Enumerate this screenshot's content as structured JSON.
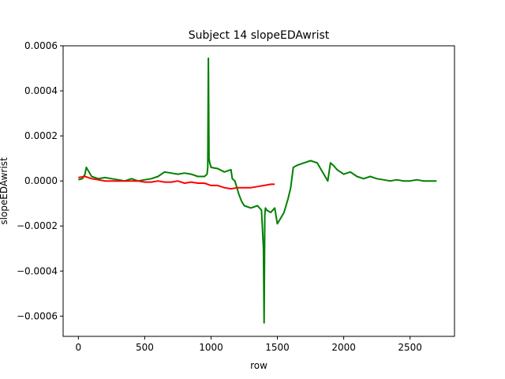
{
  "chart_data": {
    "type": "line",
    "title": "Subject 14 slopeEDAwrist",
    "xlabel": "row",
    "ylabel": "slopeEDAwrist",
    "xlim": [
      -115,
      2835
    ],
    "ylim": [
      -0.00069,
      0.0006
    ],
    "xticks": [
      0,
      500,
      1000,
      1500,
      2000,
      2500
    ],
    "xtick_labels": [
      "0",
      "500",
      "1000",
      "1500",
      "2000",
      "2500"
    ],
    "yticks": [
      -0.0006,
      -0.0004,
      -0.0002,
      0.0,
      0.0002,
      0.0004,
      0.0006
    ],
    "ytick_labels": [
      "−0.0006",
      "−0.0004",
      "−0.0002",
      "0.0000",
      "0.0002",
      "0.0004",
      "0.0006"
    ],
    "grid": false,
    "series": [
      {
        "color": "#008000",
        "x": [
          0,
          30,
          50,
          60,
          80,
          100,
          150,
          200,
          250,
          300,
          350,
          400,
          450,
          500,
          550,
          600,
          650,
          700,
          750,
          800,
          850,
          900,
          950,
          970,
          975,
          980,
          985,
          990,
          1000,
          1050,
          1100,
          1150,
          1160,
          1180,
          1200,
          1210,
          1230,
          1250,
          1300,
          1350,
          1380,
          1395,
          1400,
          1405,
          1410,
          1420,
          1450,
          1480,
          1500,
          1520,
          1550,
          1580,
          1600,
          1620,
          1650,
          1700,
          1750,
          1800,
          1830,
          1850,
          1880,
          1900,
          1920,
          1950,
          2000,
          2050,
          2100,
          2150,
          2200,
          2250,
          2300,
          2350,
          2400,
          2450,
          2500,
          2550,
          2600,
          2650,
          2700
        ],
        "y": [
          5e-06,
          1e-05,
          3e-05,
          6e-05,
          4e-05,
          2e-05,
          1e-05,
          1.5e-05,
          1e-05,
          5e-06,
          0.0,
          1e-05,
          0.0,
          5e-06,
          1e-05,
          2e-05,
          4e-05,
          3.5e-05,
          3e-05,
          3.5e-05,
          3e-05,
          2e-05,
          2e-05,
          3e-05,
          6e-05,
          0.000545,
          0.0001,
          8e-05,
          6e-05,
          5.5e-05,
          4e-05,
          5e-05,
          1e-05,
          0.0,
          -4e-05,
          -6e-05,
          -9e-05,
          -0.00011,
          -0.00012,
          -0.00011,
          -0.00013,
          -0.0003,
          -0.00063,
          -0.00015,
          -0.00012,
          -0.00013,
          -0.00014,
          -0.00012,
          -0.00019,
          -0.00017,
          -0.00014,
          -8e-05,
          -3e-05,
          6e-05,
          7e-05,
          8e-05,
          9e-05,
          8e-05,
          5e-05,
          3e-05,
          0.0,
          8e-05,
          7e-05,
          5e-05,
          3e-05,
          4e-05,
          2e-05,
          1e-05,
          2e-05,
          1e-05,
          5e-06,
          0.0,
          5e-06,
          0.0,
          0.0,
          5e-06,
          0.0,
          0.0,
          0.0
        ]
      },
      {
        "color": "#ff0000",
        "x": [
          0,
          50,
          100,
          150,
          200,
          250,
          300,
          350,
          400,
          450,
          500,
          550,
          600,
          650,
          700,
          750,
          800,
          850,
          900,
          950,
          1000,
          1050,
          1100,
          1150,
          1200,
          1250,
          1300,
          1350,
          1400,
          1450,
          1480
        ],
        "y": [
          1.5e-05,
          2e-05,
          1e-05,
          5e-06,
          0.0,
          0.0,
          0.0,
          0.0,
          0.0,
          0.0,
          -5e-06,
          -5e-06,
          0.0,
          -5e-06,
          -5e-06,
          0.0,
          -1e-05,
          -5e-06,
          -1e-05,
          -1e-05,
          -2e-05,
          -2e-05,
          -3e-05,
          -3.5e-05,
          -3e-05,
          -3e-05,
          -3e-05,
          -2.5e-05,
          -2e-05,
          -1.5e-05,
          -1.5e-05
        ]
      }
    ]
  }
}
